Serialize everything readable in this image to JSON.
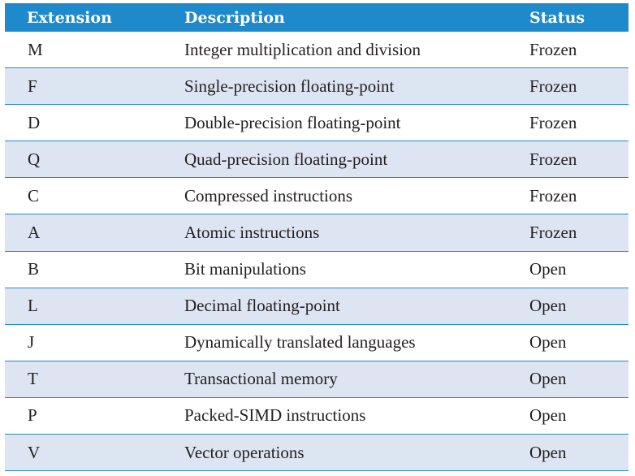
{
  "table": {
    "headers": [
      "Extension",
      "Description",
      "Status"
    ],
    "rows": [
      [
        "M",
        "Integer multiplication and division",
        "Frozen"
      ],
      [
        "F",
        "Single-precision floating-point",
        "Frozen"
      ],
      [
        "D",
        "Double-precision floating-point",
        "Frozen"
      ],
      [
        "Q",
        "Quad-precision floating-point",
        "Frozen"
      ],
      [
        "C",
        "Compressed instructions",
        "Frozen"
      ],
      [
        "A",
        "Atomic instructions",
        "Frozen"
      ],
      [
        "B",
        "Bit manipulations",
        "Open"
      ],
      [
        "L",
        "Decimal floating-point",
        "Open"
      ],
      [
        "J",
        "Dynamically translated languages",
        "Open"
      ],
      [
        "T",
        "Transactional memory",
        "Open"
      ],
      [
        "P",
        "Packed-SIMD instructions",
        "Open"
      ],
      [
        "V",
        "Vector operations",
        "Open"
      ]
    ]
  },
  "colors": {
    "header_bg": "#1f8acb",
    "header_text": "#ffffff",
    "alt_row_bg": "#dde5f2",
    "row_divider": "#1f8acb",
    "body_text": "#231f20"
  }
}
